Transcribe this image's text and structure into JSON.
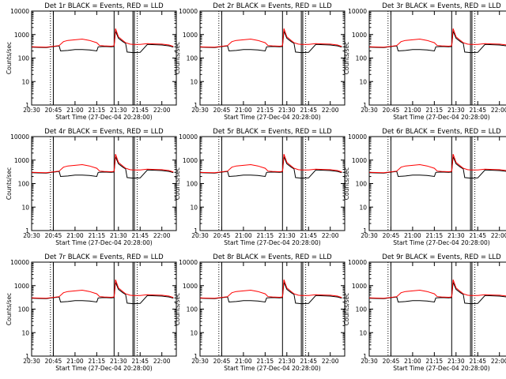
{
  "chart_data": {
    "type": "line",
    "layout": "3x3 grid",
    "xlabel": "Start Time (27-Dec-04 20:28:00)",
    "ylabel": "Counts/sec",
    "xticks": [
      "20:30",
      "20:45",
      "21:00",
      "21:15",
      "21:30",
      "21:45",
      "22:00"
    ],
    "yticks": [
      "1",
      "10",
      "100",
      "1000",
      "10000"
    ],
    "ylim": [
      1,
      10000
    ],
    "xlim": [
      "20:30",
      "22:10"
    ],
    "yscale": "log",
    "grid": false,
    "colors": {
      "events": "#000000",
      "lld": "#ff0000"
    },
    "panels": [
      {
        "title": "Det 1r BLACK = Events, RED = LLD"
      },
      {
        "title": "Det 2r BLACK = Events, RED = LLD"
      },
      {
        "title": "Det 3r BLACK = Events, RED = LLD"
      },
      {
        "title": "Det 4r BLACK = Events, RED = LLD"
      },
      {
        "title": "Det 5r BLACK = Events, RED = LLD"
      },
      {
        "title": "Det 6r BLACK = Events, RED = LLD"
      },
      {
        "title": "Det 7r BLACK = Events, RED = LLD"
      },
      {
        "title": "Det 8r BLACK = Events, RED = LLD"
      },
      {
        "title": "Det 9r BLACK = Events, RED = LLD"
      }
    ],
    "vertical_markers": [
      {
        "time": "20:43",
        "style": "dotted"
      },
      {
        "time": "20:45",
        "style": "solid"
      },
      {
        "time": "21:27",
        "style": "solid"
      },
      {
        "time": "21:40",
        "style": "solid"
      },
      {
        "time": "21:41",
        "style": "solid"
      },
      {
        "time": "21:43",
        "style": "dotted"
      },
      {
        "time": "22:10",
        "style": "dotted"
      }
    ],
    "series": [
      {
        "name": "Events",
        "color": "#000000",
        "x": [
          "20:30",
          "20:40",
          "20:44",
          "20:49",
          "20:50",
          "20:55",
          "21:00",
          "21:05",
          "21:10",
          "21:15",
          "21:16",
          "21:20",
          "21:25",
          "21:27",
          "21:28",
          "21:30",
          "21:33",
          "21:35",
          "21:36",
          "21:40",
          "21:45",
          "21:50",
          "21:55",
          "22:00",
          "22:05",
          "22:08"
        ],
        "values": [
          290,
          280,
          300,
          330,
          200,
          210,
          230,
          230,
          220,
          200,
          300,
          310,
          300,
          310,
          1400,
          700,
          500,
          420,
          180,
          170,
          175,
          380,
          370,
          360,
          330,
          290
        ]
      },
      {
        "name": "LLD",
        "color": "#ff0000",
        "x": [
          "20:30",
          "20:40",
          "20:44",
          "20:49",
          "20:52",
          "20:55",
          "21:00",
          "21:05",
          "21:10",
          "21:15",
          "21:17",
          "21:20",
          "21:25",
          "21:27",
          "21:28",
          "21:30",
          "21:33",
          "21:35",
          "21:38",
          "21:40",
          "21:45",
          "21:50",
          "21:55",
          "22:00",
          "22:05",
          "22:08"
        ],
        "values": [
          300,
          290,
          310,
          340,
          500,
          560,
          600,
          640,
          560,
          450,
          340,
          330,
          320,
          330,
          1800,
          800,
          560,
          450,
          390,
          380,
          380,
          410,
          400,
          390,
          360,
          310
        ]
      }
    ]
  }
}
